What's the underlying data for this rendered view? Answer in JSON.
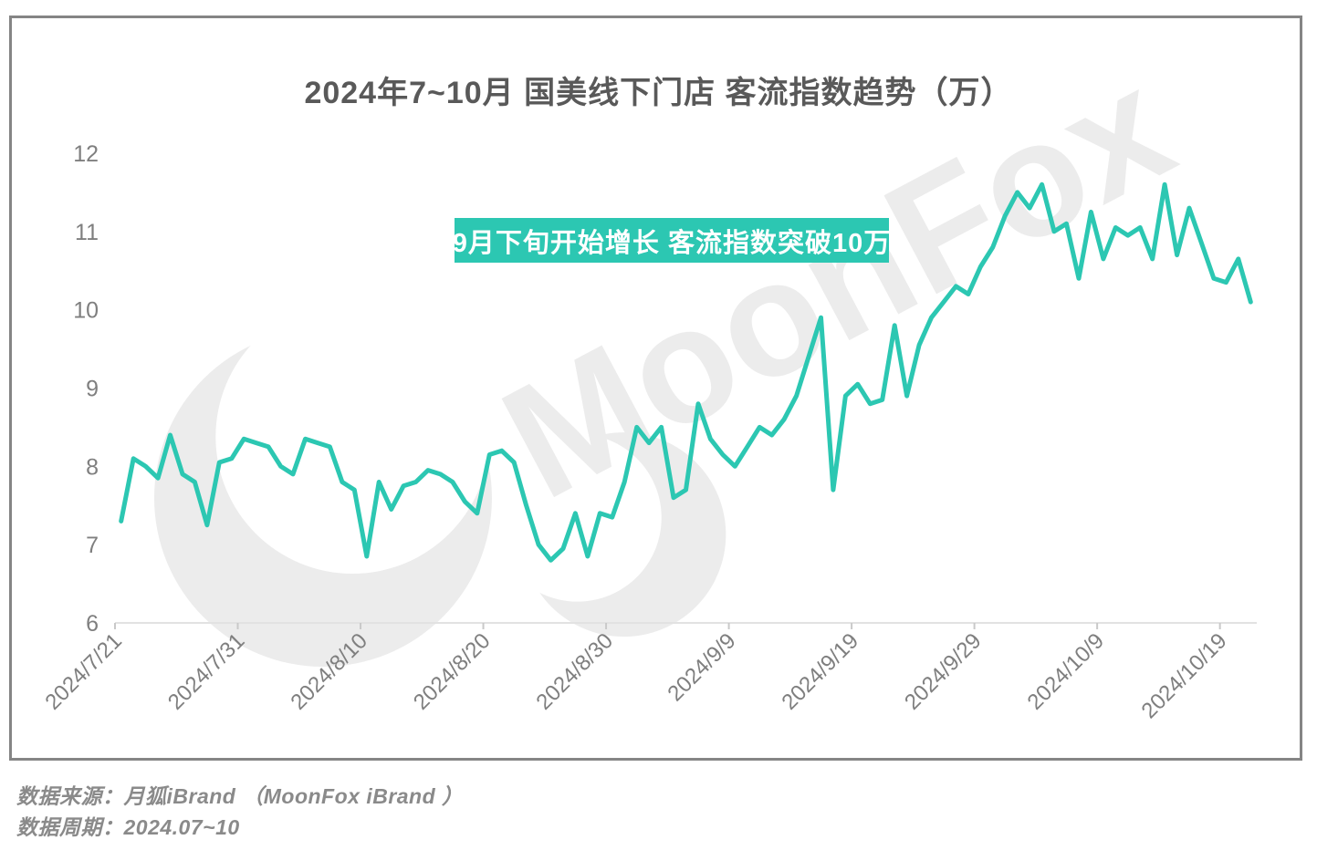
{
  "chart_data": {
    "type": "line",
    "title": "2024年7~10月 国美线下门店 客流指数趋势（万）",
    "x": [
      "2024/7/21",
      "2024/7/22",
      "2024/7/23",
      "2024/7/24",
      "2024/7/25",
      "2024/7/26",
      "2024/7/27",
      "2024/7/28",
      "2024/7/29",
      "2024/7/30",
      "2024/7/31",
      "2024/8/1",
      "2024/8/2",
      "2024/8/3",
      "2024/8/4",
      "2024/8/5",
      "2024/8/6",
      "2024/8/7",
      "2024/8/8",
      "2024/8/9",
      "2024/8/10",
      "2024/8/11",
      "2024/8/12",
      "2024/8/13",
      "2024/8/14",
      "2024/8/15",
      "2024/8/16",
      "2024/8/17",
      "2024/8/18",
      "2024/8/19",
      "2024/8/20",
      "2024/8/21",
      "2024/8/22",
      "2024/8/23",
      "2024/8/24",
      "2024/8/25",
      "2024/8/26",
      "2024/8/27",
      "2024/8/28",
      "2024/8/29",
      "2024/8/30",
      "2024/8/31",
      "2024/9/1",
      "2024/9/2",
      "2024/9/3",
      "2024/9/4",
      "2024/9/5",
      "2024/9/6",
      "2024/9/7",
      "2024/9/8",
      "2024/9/9",
      "2024/9/10",
      "2024/9/11",
      "2024/9/12",
      "2024/9/13",
      "2024/9/14",
      "2024/9/15",
      "2024/9/16",
      "2024/9/17",
      "2024/9/18",
      "2024/9/19",
      "2024/9/20",
      "2024/9/21",
      "2024/9/22",
      "2024/9/23",
      "2024/9/24",
      "2024/9/25",
      "2024/9/26",
      "2024/9/27",
      "2024/9/28",
      "2024/9/29",
      "2024/9/30",
      "2024/10/1",
      "2024/10/2",
      "2024/10/3",
      "2024/10/4",
      "2024/10/5",
      "2024/10/6",
      "2024/10/7",
      "2024/10/8",
      "2024/10/9",
      "2024/10/10",
      "2024/10/11",
      "2024/10/12",
      "2024/10/13",
      "2024/10/14",
      "2024/10/15",
      "2024/10/16",
      "2024/10/17",
      "2024/10/18",
      "2024/10/19",
      "2024/10/20",
      "2024/10/21"
    ],
    "values": [
      7.3,
      8.1,
      8.0,
      7.85,
      8.4,
      7.9,
      7.8,
      7.25,
      8.05,
      8.1,
      8.35,
      8.3,
      8.25,
      8.0,
      7.9,
      8.35,
      8.3,
      8.25,
      7.8,
      7.7,
      6.85,
      7.8,
      7.45,
      7.75,
      7.8,
      7.95,
      7.9,
      7.8,
      7.55,
      7.4,
      8.15,
      8.2,
      8.05,
      7.5,
      7.0,
      6.8,
      6.95,
      7.4,
      6.85,
      7.4,
      7.35,
      7.8,
      8.5,
      8.3,
      8.5,
      7.6,
      7.7,
      8.8,
      8.35,
      8.15,
      8.0,
      8.25,
      8.5,
      8.4,
      8.6,
      8.9,
      9.4,
      9.9,
      7.7,
      8.9,
      9.05,
      8.8,
      8.85,
      9.8,
      8.9,
      9.55,
      9.9,
      10.1,
      10.3,
      10.2,
      10.55,
      10.8,
      11.2,
      11.5,
      11.3,
      11.6,
      11.0,
      11.1,
      10.4,
      11.25,
      10.65,
      11.05,
      10.95,
      11.05,
      10.65,
      11.6,
      10.7,
      11.3,
      10.85,
      10.4,
      10.35,
      10.65,
      10.1
    ],
    "ylim": [
      6,
      12
    ],
    "y_ticks": [
      6,
      7,
      8,
      9,
      10,
      11,
      12
    ],
    "x_tick_indices": [
      0,
      10,
      20,
      30,
      40,
      50,
      60,
      70,
      80,
      90
    ],
    "x_tick_labels": [
      "2024/7/21",
      "2024/7/31",
      "2024/8/10",
      "2024/8/20",
      "2024/8/30",
      "2024/9/9",
      "2024/9/19",
      "2024/9/29",
      "2024/10/9",
      "2024/10/19"
    ],
    "gridlines": "none",
    "legend": "none",
    "line_color": "#2cc7b2",
    "annotation": {
      "text": "9月下旬开始增长 客流指数突破10万",
      "bg": "#2cc7b2",
      "color": "#ffffff"
    }
  },
  "watermark": {
    "text": "MoonFox"
  },
  "footer": {
    "source": "数据来源：月狐iBrand （MoonFox iBrand ）",
    "period": "数据周期：2024.07~10"
  }
}
